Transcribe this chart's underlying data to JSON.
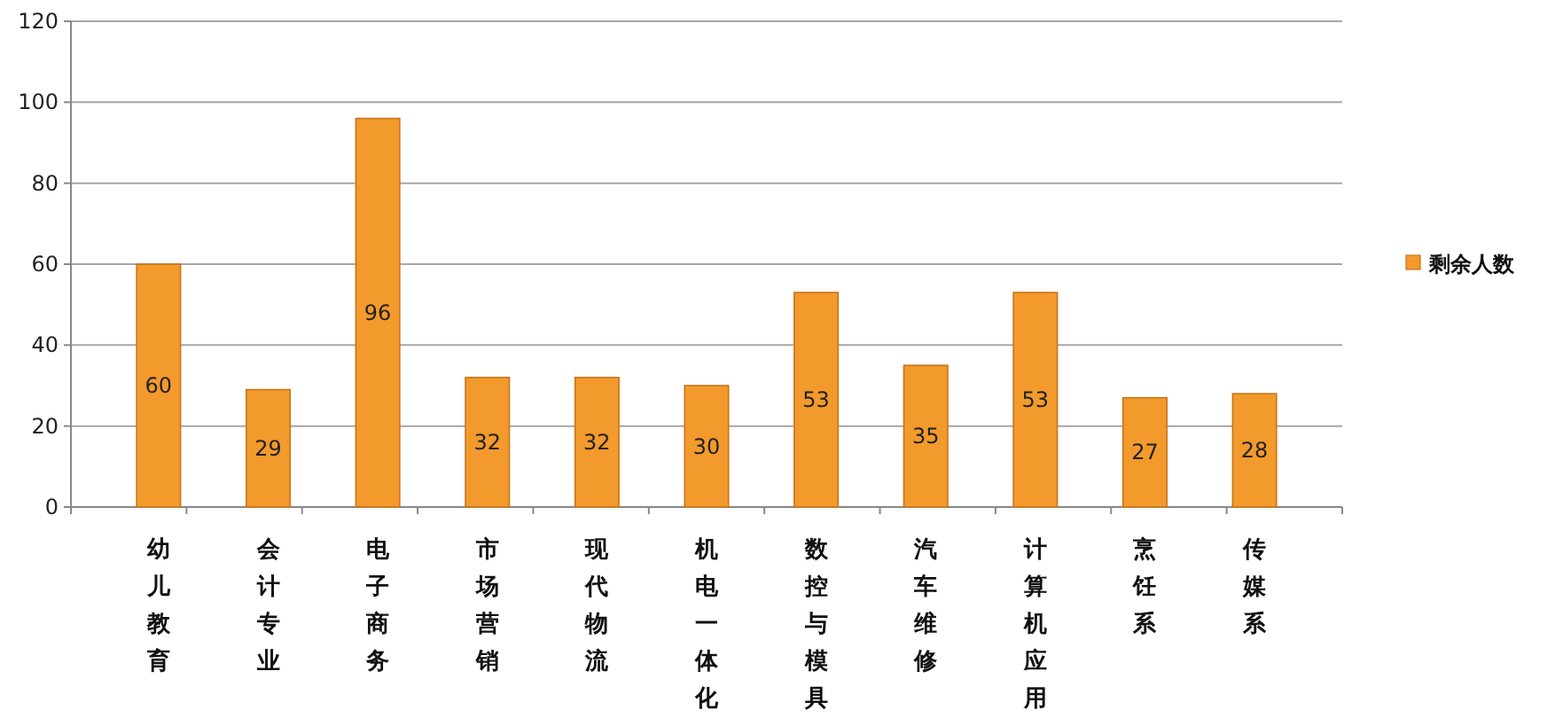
{
  "chart_data": {
    "type": "bar",
    "categories": [
      "幼儿教育",
      "会计专业",
      "电子商务",
      "市场营销",
      "现代物流",
      "机电一体化",
      "数控与模具",
      "汽车维修",
      "计算机应用",
      "烹饪系",
      "传媒系"
    ],
    "series": [
      {
        "name": "剩余人数",
        "color": "#f39a2c",
        "values": [
          60,
          29,
          96,
          32,
          32,
          30,
          53,
          35,
          53,
          27,
          28
        ]
      }
    ],
    "ylim": [
      0,
      120
    ],
    "yticks": [
      0,
      20,
      40,
      60,
      80,
      100,
      120
    ],
    "grid": "y",
    "legend": "right",
    "data_labels": true
  }
}
